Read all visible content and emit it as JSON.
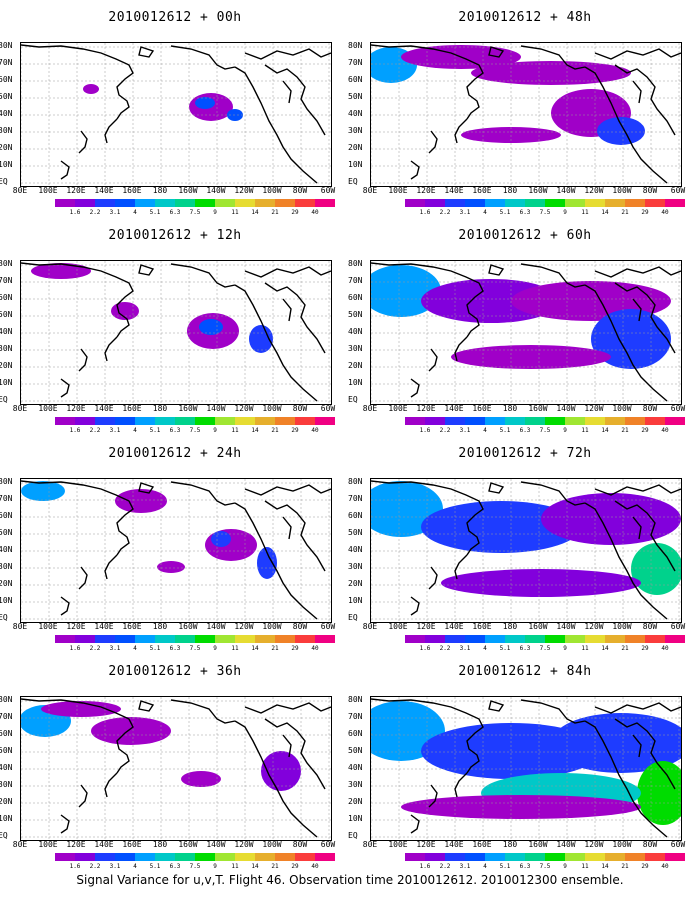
{
  "panels": [
    {
      "title": "2010012612 + 00h",
      "level": 0
    },
    {
      "title": "2010012612 + 48h",
      "level": 4
    },
    {
      "title": "2010012612 + 12h",
      "level": 1
    },
    {
      "title": "2010012612 + 60h",
      "level": 5
    },
    {
      "title": "2010012612 + 24h",
      "level": 2
    },
    {
      "title": "2010012612 + 72h",
      "level": 6
    },
    {
      "title": "2010012612 + 36h",
      "level": 3
    },
    {
      "title": "2010012612 + 84h",
      "level": 7
    }
  ],
  "lat_labels": [
    "80N",
    "70N",
    "60N",
    "50N",
    "40N",
    "30N",
    "20N",
    "10N",
    "EQ"
  ],
  "lon_labels": [
    "80E",
    "100E",
    "120E",
    "140E",
    "160E",
    "180",
    "160W",
    "140W",
    "120W",
    "100W",
    "80W",
    "60W"
  ],
  "colorbar": {
    "labels": [
      "1.6",
      "2.2",
      "3.1",
      "4",
      "5.1",
      "6.3",
      "7.5",
      "9",
      "11",
      "14",
      "21",
      "29",
      "40"
    ],
    "colors": [
      "#a000c8",
      "#8200dc",
      "#1e3cff",
      "#0050ff",
      "#00a0ff",
      "#00c8c8",
      "#00d28c",
      "#00dc00",
      "#a0e632",
      "#e6dc32",
      "#e6af2d",
      "#f08228",
      "#fa3c3c",
      "#f00082"
    ]
  },
  "footer": "Signal Variance for u,v,T. Flight 46. Observation time 2010012612. 2010012300 ensemble."
}
